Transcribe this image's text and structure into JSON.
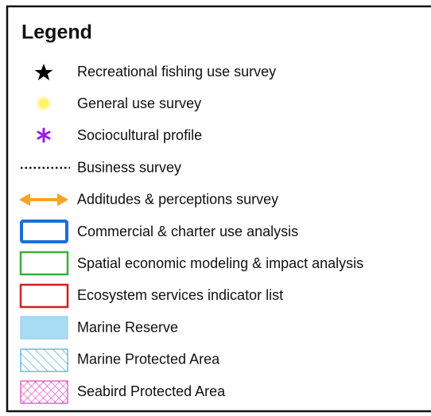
{
  "legend": {
    "title": "Legend",
    "items": [
      "Recreational fishing use survey",
      "General use survey",
      "Sociocultural profile",
      "Business survey",
      "Additudes & perceptions survey",
      "Commercial & charter use analysis",
      "Spatial economic modeling & impact analysis",
      "Ecosystem services indicator list",
      "Marine Reserve",
      "Marine Protected Area",
      "Seabird Protected Area"
    ]
  }
}
